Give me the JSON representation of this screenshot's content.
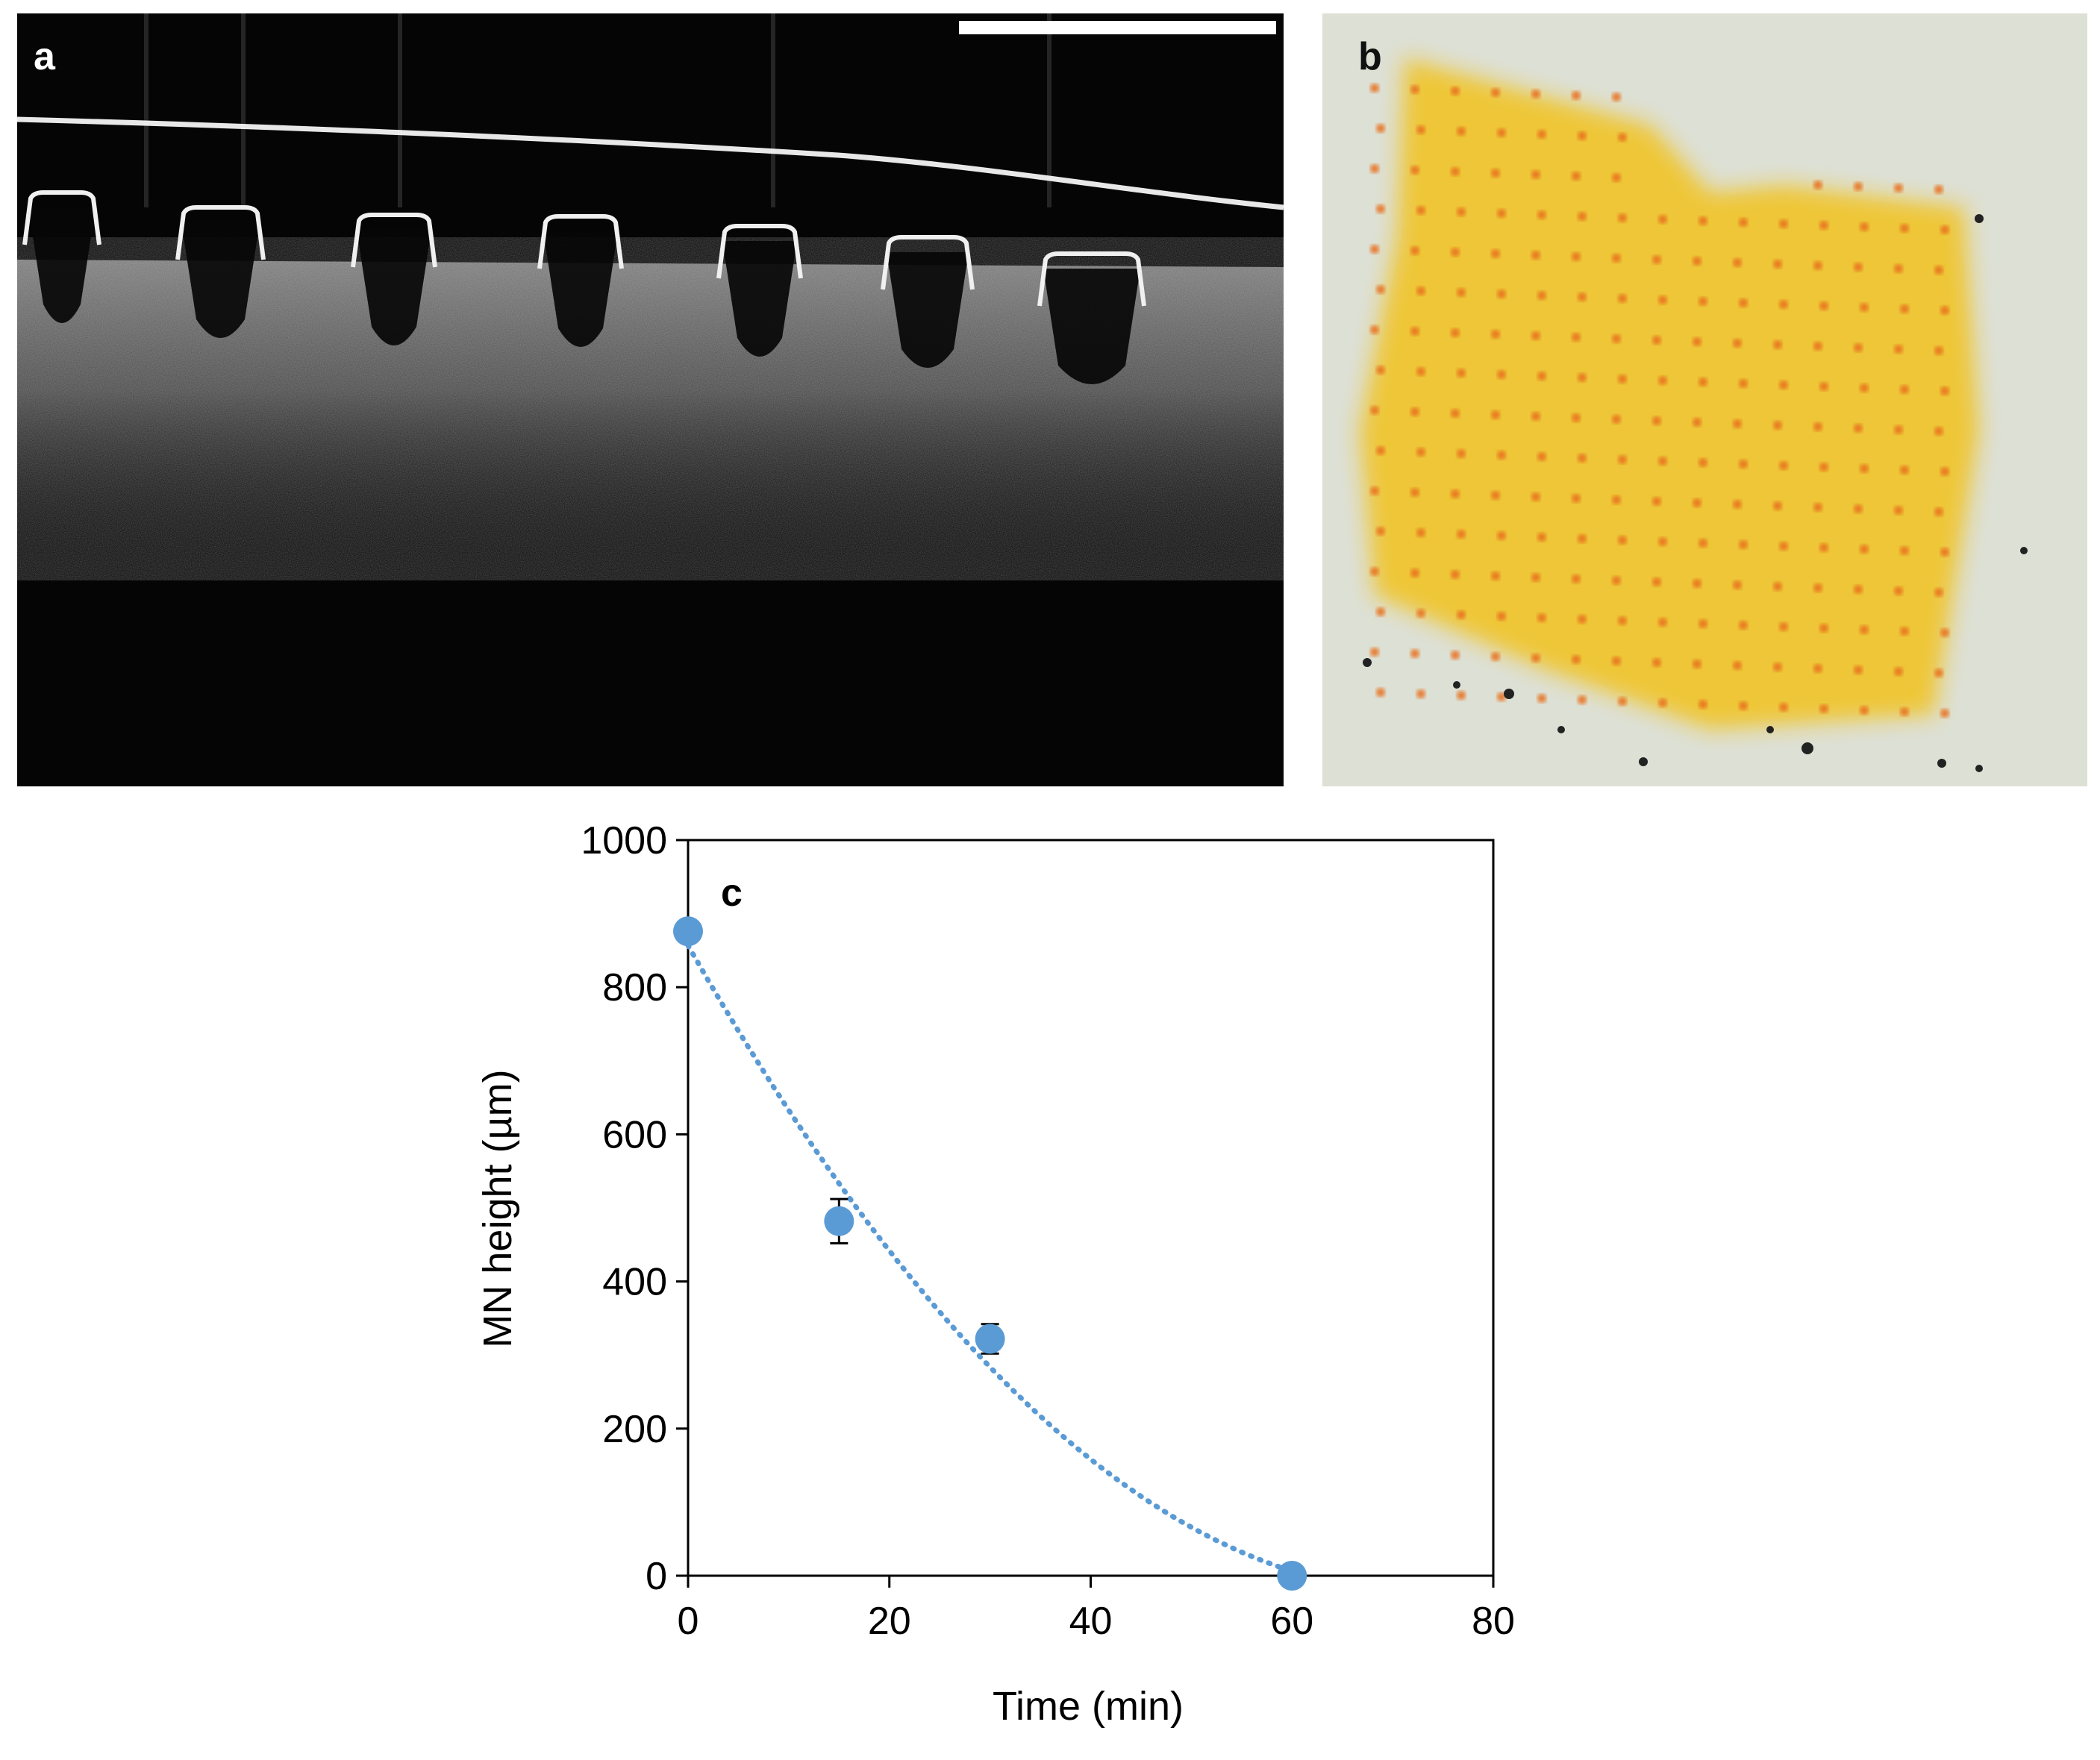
{
  "panels": {
    "a": {
      "label": "a"
    },
    "b": {
      "label": "b"
    },
    "c": {
      "label": "c"
    }
  },
  "colors": {
    "series": "#5b9bd5",
    "error_bar": "#000000",
    "oct_background": "#050505",
    "skin_background": "#dde0d4",
    "dye": "#f2c21a",
    "dye_spot": "#e8701e"
  },
  "chart_data": {
    "type": "scatter",
    "title": "",
    "xlabel": "Time (min)",
    "ylabel": "MN height (µm)",
    "xlim": [
      0,
      80
    ],
    "ylim": [
      0,
      1000
    ],
    "xticks": [
      "0",
      "20",
      "40",
      "60",
      "80"
    ],
    "yticks": [
      "0",
      "200",
      "400",
      "600",
      "800",
      "1000"
    ],
    "grid": false,
    "legend": false,
    "trendline": "dotted polynomial fit",
    "series": [
      {
        "x": [
          0,
          15,
          30,
          60
        ],
        "y": [
          876,
          482,
          322,
          0
        ],
        "error": [
          0,
          30,
          20,
          0
        ]
      }
    ]
  }
}
